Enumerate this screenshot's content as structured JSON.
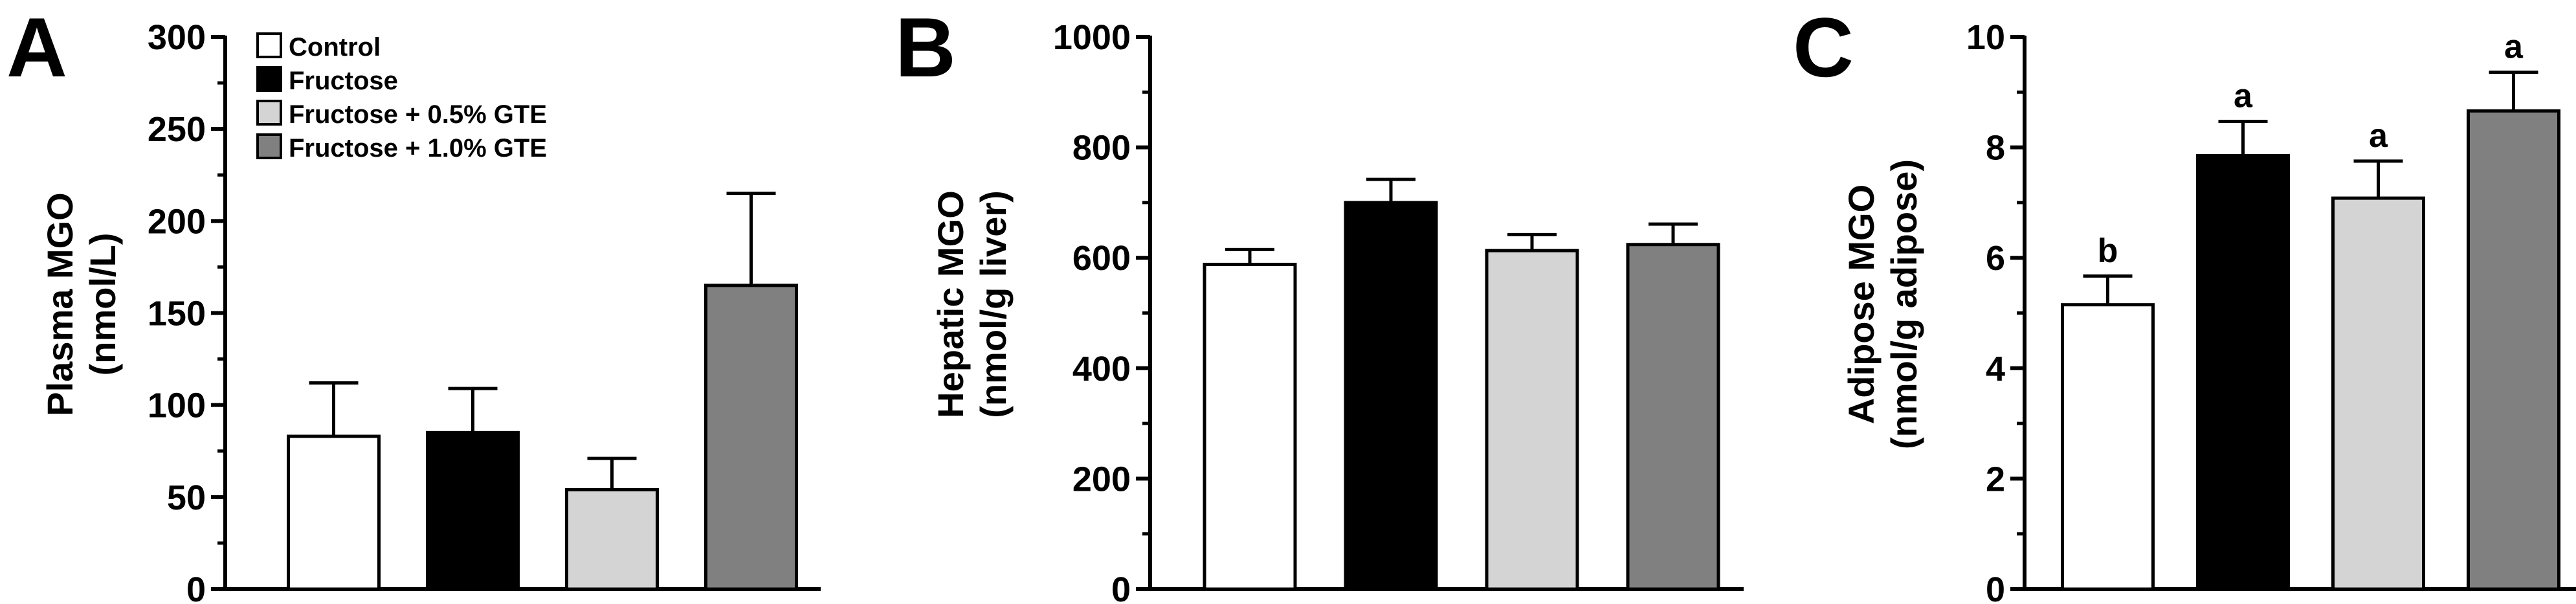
{
  "figure": {
    "panels": [
      "A",
      "B",
      "C"
    ]
  },
  "legend": {
    "items": [
      {
        "label": "Control",
        "color": "#ffffff"
      },
      {
        "label": "Fructose",
        "color": "#000000"
      },
      {
        "label": "Fructose + 0.5% GTE",
        "color": "#d4d4d4"
      },
      {
        "label": "Fructose + 1.0% GTE",
        "color": "#808080"
      }
    ]
  },
  "chart_data": [
    {
      "type": "bar",
      "panel": "A",
      "categories": [
        "Control",
        "Fructose",
        "Fructose + 0.5% GTE",
        "Fructose + 1.0% GTE"
      ],
      "values": [
        83,
        85,
        54,
        165
      ],
      "errors": [
        29,
        24,
        17,
        50
      ],
      "ylabel_lines": [
        "Plasma MGO",
        "(nmol/L)"
      ],
      "ylim": [
        0,
        300
      ],
      "yticks": [
        0,
        50,
        100,
        150,
        200,
        250,
        300
      ],
      "ytick_labels": [
        "0",
        "50",
        "100",
        "150",
        "200",
        "250",
        "300"
      ],
      "annotations": [
        "",
        "",
        "",
        ""
      ],
      "colors": [
        "#ffffff",
        "#000000",
        "#d4d4d4",
        "#808080"
      ]
    },
    {
      "type": "bar",
      "panel": "B",
      "categories": [
        "Control",
        "Fructose",
        "Fructose + 0.5% GTE",
        "Fructose + 1.0% GTE"
      ],
      "values": [
        588,
        700,
        613,
        624
      ],
      "errors": [
        27,
        42,
        29,
        37
      ],
      "ylabel_lines": [
        "Hepatic MGO",
        "(nmol/g liver)"
      ],
      "ylim": [
        0,
        1000
      ],
      "yticks": [
        0,
        200,
        400,
        600,
        800,
        1000
      ],
      "ytick_labels": [
        "0",
        "200",
        "400",
        "600",
        "800",
        "1000"
      ],
      "annotations": [
        "",
        "",
        "",
        ""
      ],
      "colors": [
        "#ffffff",
        "#000000",
        "#d4d4d4",
        "#808080"
      ]
    },
    {
      "type": "bar",
      "panel": "C",
      "categories": [
        "Control",
        "Fructose",
        "Fructose + 0.5% GTE",
        "Fructose + 1.0% GTE"
      ],
      "values": [
        5.15,
        7.85,
        7.08,
        8.66
      ],
      "errors": [
        0.52,
        0.62,
        0.67,
        0.7
      ],
      "ylabel_lines": [
        "Adipose MGO",
        "(nmol/g adipose)"
      ],
      "ylim": [
        0,
        10
      ],
      "yticks": [
        0,
        2,
        4,
        6,
        8,
        10
      ],
      "ytick_labels": [
        "0",
        "2",
        "4",
        "6",
        "8",
        "10"
      ],
      "annotations": [
        "b",
        "a",
        "a",
        "a"
      ],
      "colors": [
        "#ffffff",
        "#000000",
        "#d4d4d4",
        "#808080"
      ]
    }
  ]
}
